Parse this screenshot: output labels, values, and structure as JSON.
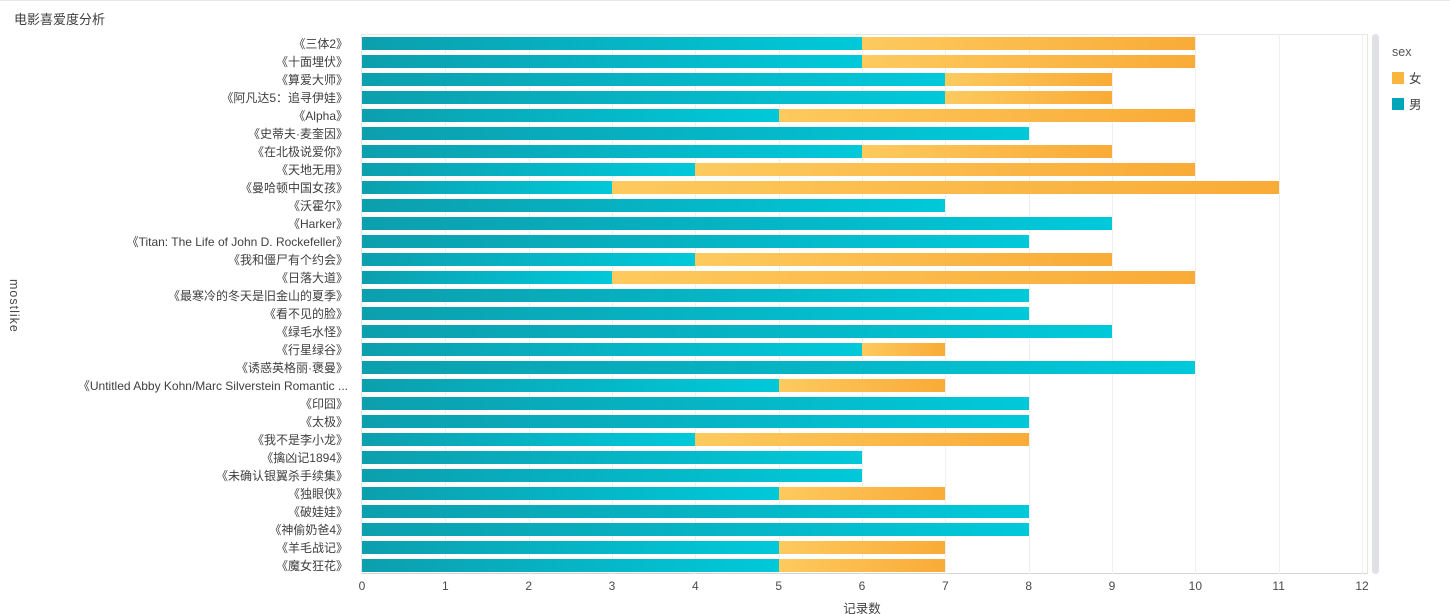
{
  "page": {
    "title": "电影喜爱度分析"
  },
  "chart_data": {
    "type": "bar",
    "orientation": "horizontal",
    "stacked": true,
    "title": "电影喜爱度分析",
    "xlabel": "记录数",
    "ylabel": "mostlike",
    "xlim": [
      0,
      12
    ],
    "xticks": [
      0,
      1,
      2,
      3,
      4,
      5,
      6,
      7,
      8,
      9,
      10,
      11,
      12
    ],
    "grid": true,
    "legend": {
      "title": "sex",
      "position": "right",
      "entries": [
        {
          "label": "女",
          "color": "#f9b53c"
        },
        {
          "label": "男",
          "color": "#00a5b8"
        }
      ]
    },
    "categories": [
      "《三体2》",
      "《十面埋伏》",
      "《算爱大师》",
      "《阿凡达5：追寻伊娃》",
      "《Alpha》",
      "《史蒂夫·麦奎因》",
      "《在北极说爱你》",
      "《天地无用》",
      "《曼哈顿中国女孩》",
      "《沃霍尔》",
      "《Harker》",
      "《Titan: The Life of John D. Rockefeller》",
      "《我和僵尸有个约会》",
      "《日落大道》",
      "《最寒冷的冬天是旧金山的夏季》",
      "《看不见的脸》",
      "《绿毛水怪》",
      "《行星绿谷》",
      "《诱惑英格丽·褒曼》",
      "《Untitled Abby Kohn/Marc Silverstein Romantic ...",
      "《印囧》",
      "《太极》",
      "《我不是李小龙》",
      "《擒凶记1894》",
      "《未确认银翼杀手续集》",
      "《独眼侠》",
      "《破娃娃》",
      "《神偷奶爸4》",
      "《羊毛战记》",
      "《魔女狂花》"
    ],
    "series": [
      {
        "name": "男",
        "key": "male",
        "color_start": "#0c9fae",
        "color_end": "#00c9da",
        "values": [
          6,
          6,
          7,
          7,
          5,
          8,
          6,
          4,
          3,
          7,
          9,
          8,
          4,
          3,
          8,
          8,
          9,
          6,
          10,
          5,
          8,
          8,
          4,
          6,
          6,
          5,
          8,
          8,
          5,
          5
        ]
      },
      {
        "name": "女",
        "key": "female",
        "color_start": "#fdca5e",
        "color_end": "#f9ab37",
        "values": [
          4,
          4,
          2,
          2,
          5,
          0,
          3,
          6,
          8,
          0,
          0,
          0,
          5,
          7,
          0,
          0,
          0,
          1,
          0,
          2,
          0,
          0,
          4,
          0,
          0,
          2,
          0,
          0,
          2,
          2
        ]
      }
    ]
  }
}
